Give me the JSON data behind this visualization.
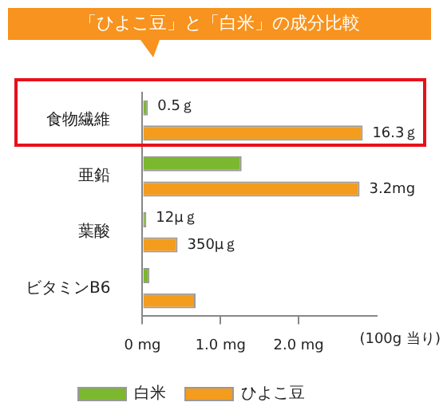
{
  "chart_data": {
    "type": "bar",
    "orientation": "horizontal",
    "title": "「ひよこ豆」と「白米」の成分比較",
    "xlabel": "(100g 当り)",
    "categories": [
      "食物繊維",
      "亜鉛",
      "葉酸",
      "ビタミンB6"
    ],
    "series": [
      {
        "name": "白米",
        "color": "#7cb82f",
        "values": [
          0.07,
          1.27,
          0.05,
          0.09
        ]
      },
      {
        "name": "ひよこ豆",
        "color": "#f39c1e",
        "values": [
          2.82,
          2.78,
          0.45,
          0.68
        ]
      }
    ],
    "annotations": [
      {
        "text": "0.5ｇ",
        "x": 0.07,
        "y": "食物繊維"
      },
      {
        "text": "16.3ｇ",
        "x": 2.82,
        "y": "食物繊維"
      },
      {
        "text": "3.2mg",
        "x": 2.78,
        "y": "亜鉛"
      },
      {
        "text": "12μｇ",
        "x": 0.05,
        "y": "葉酸"
      },
      {
        "text": "350μｇ",
        "x": 0.45,
        "y": "葉酸"
      }
    ],
    "xlim": [
      0,
      3
    ],
    "xticks": [
      {
        "value": 0,
        "label": "0 mg"
      },
      {
        "value": 1,
        "label": "1.0 mg"
      },
      {
        "value": 2,
        "label": "2.0 mg"
      }
    ],
    "grid": false,
    "legend": "bottom"
  }
}
